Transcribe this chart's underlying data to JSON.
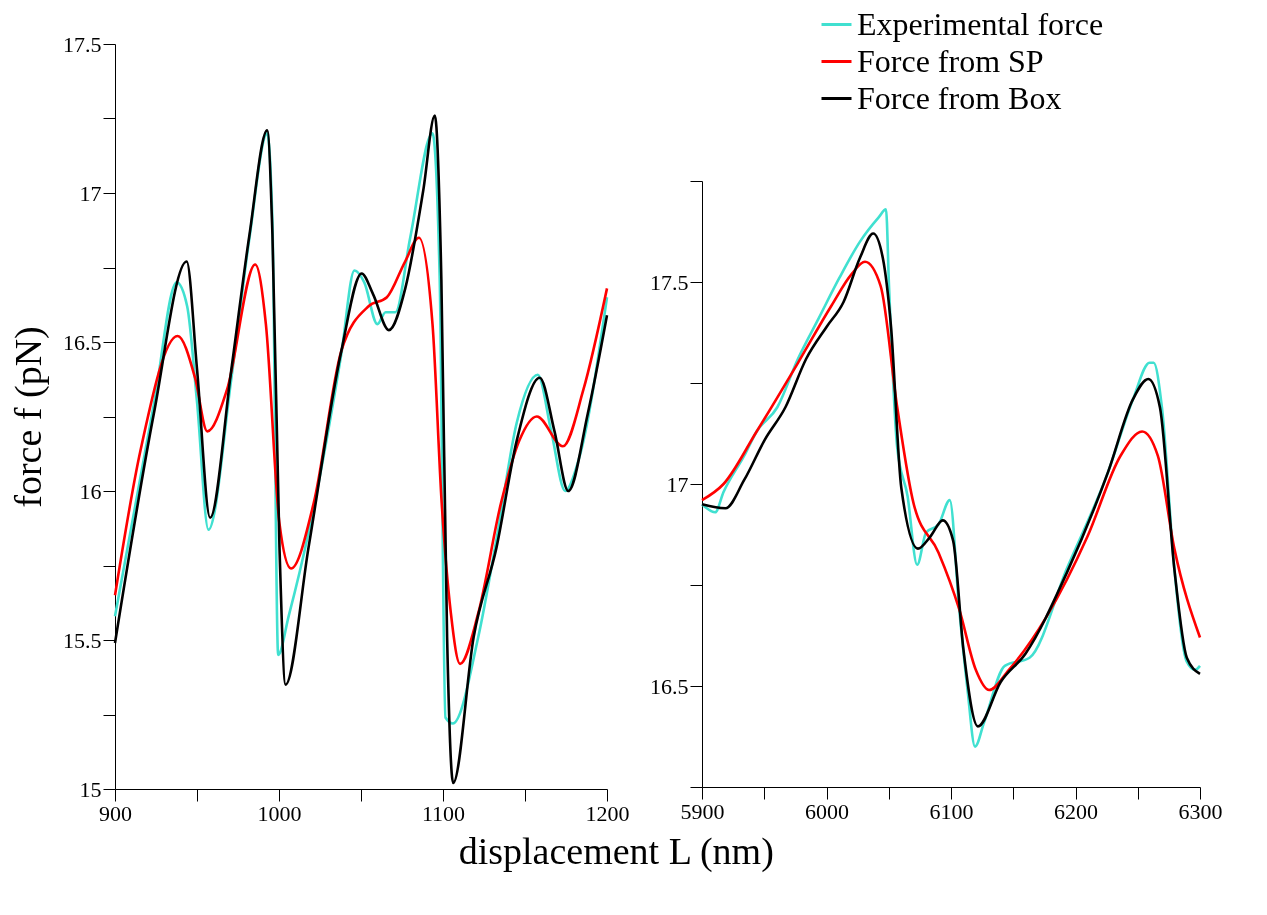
{
  "chart_data": [
    {
      "type": "line",
      "ylabel": "force f (pN)",
      "xlabel": "displacement L (nm)",
      "xlim": [
        900,
        1200
      ],
      "ylim": [
        15,
        17.5
      ],
      "legend": false,
      "grid": false,
      "line_style": "solid",
      "marker": "none",
      "xticks": [
        900,
        {
          "value": 950,
          "label": null
        },
        1000,
        {
          "value": 1050,
          "label": null
        },
        1100,
        {
          "value": 1150,
          "label": null
        },
        1200
      ],
      "yticks": [
        15,
        {
          "value": 15.25,
          "label": null
        },
        15.5,
        {
          "value": 15.75,
          "label": null
        },
        16,
        {
          "value": 16.25,
          "label": null
        },
        16.5,
        {
          "value": 16.75,
          "label": null
        },
        17,
        {
          "value": 17.25,
          "label": null
        },
        17.5
      ],
      "series": [
        {
          "color": "#40e0d0",
          "x": [
            900,
            924,
            937.6,
            944,
            950,
            957,
            971,
            982,
            992.8,
            996,
            999.5,
            1005.9,
            1018,
            1038,
            1046,
            1052,
            1060,
            1065,
            1071,
            1080,
            1093.6,
            1098,
            1101.5,
            1106,
            1121.5,
            1133,
            1145,
            1157.8,
            1166,
            1174.5,
            1183,
            1200
          ],
          "values": [
            15.58,
            16.3,
            16.7,
            16.62,
            16.3,
            15.87,
            16.38,
            16.85,
            17.2,
            16.9,
            15.45,
            15.58,
            15.86,
            16.46,
            16.74,
            16.7,
            16.56,
            16.6,
            16.6,
            16.85,
            17.2,
            16.71,
            15.24,
            15.22,
            15.51,
            15.85,
            16.23,
            16.39,
            16.2,
            16.0,
            16.11,
            16.65
          ]
        },
        {
          "color": "#ff0000",
          "x": [
            900,
            915.3,
            938.2,
            948.8,
            956.3,
            968.3,
            985.5,
            992,
            1000.3,
            1007.3,
            1021.2,
            1038,
            1054.6,
            1065.8,
            1076.9,
            1085.3,
            1093.6,
            1099.2,
            1104.8,
            1110.4,
            1121.5,
            1135.4,
            1146.6,
            1157.2,
            1173.1,
            1185.6,
            1200
          ],
          "values": [
            15.65,
            16.13,
            16.52,
            16.38,
            16.2,
            16.34,
            16.76,
            16.56,
            15.89,
            15.74,
            15.96,
            16.47,
            16.62,
            16.65,
            16.77,
            16.85,
            16.56,
            15.96,
            15.59,
            15.42,
            15.59,
            15.96,
            16.17,
            16.25,
            16.15,
            16.34,
            16.68
          ]
        },
        {
          "color": "#000000",
          "x": [
            900,
            923.7,
            943.7,
            950,
            958,
            971,
            982,
            992.8,
            996,
            1000.3,
            1004,
            1018,
            1038,
            1050.4,
            1057.4,
            1067,
            1077,
            1088,
            1095,
            1099,
            1102.5,
            1106.2,
            1118.7,
            1132.6,
            1145,
            1159,
            1168,
            1176.4,
            1188.3,
            1200
          ],
          "values": [
            15.49,
            16.26,
            16.77,
            16.41,
            15.91,
            16.41,
            16.86,
            17.21,
            16.86,
            15.81,
            15.35,
            15.81,
            16.47,
            16.73,
            16.66,
            16.54,
            16.68,
            17.01,
            17.26,
            16.71,
            15.51,
            15.02,
            15.51,
            15.81,
            16.17,
            16.38,
            16.2,
            16.0,
            16.26,
            16.59
          ]
        }
      ]
    },
    {
      "type": "line",
      "xlim": [
        5900,
        6300
      ],
      "ylim": [
        16.25,
        17.75
      ],
      "legend": "top right",
      "grid": false,
      "line_style": "solid",
      "marker": "none",
      "xticks": [
        5900,
        {
          "value": 5950,
          "label": null
        },
        6000,
        {
          "value": 6050,
          "label": null
        },
        6100,
        {
          "value": 6150,
          "label": null
        },
        6200,
        {
          "value": 6250,
          "label": null
        },
        6300
      ],
      "yticks": [
        {
          "value": 16.25,
          "label": null
        },
        16.5,
        {
          "value": 16.75,
          "label": null
        },
        17,
        {
          "value": 17.25,
          "label": null
        },
        17.5,
        {
          "value": 17.75,
          "label": null
        }
      ],
      "series": [
        {
          "name": "Experimental force",
          "color": "#40e0d0",
          "x": [
            5900,
            5910.6,
            5917.3,
            5933.9,
            5943.9,
            5960.5,
            5977.1,
            5993.7,
            6010.3,
            6026.9,
            6041.9,
            6047.8,
            6050.2,
            6056.8,
            6065.1,
            6072.8,
            6080,
            6090,
            6099,
            6106.6,
            6113.3,
            6119.3,
            6126.6,
            6143.2,
            6163.1,
            6193,
            6226.2,
            6246.2,
            6259.5,
            6262.8,
            6269.4,
            6279.4,
            6289.4,
            6296,
            6300
          ],
          "values": [
            16.95,
            16.93,
            16.98,
            17.07,
            17.13,
            17.19,
            17.31,
            17.41,
            17.51,
            17.6,
            17.66,
            17.68,
            17.49,
            17.09,
            16.97,
            16.8,
            16.88,
            16.9,
            16.96,
            16.69,
            16.49,
            16.35,
            16.41,
            16.55,
            16.57,
            16.79,
            17.03,
            17.21,
            17.3,
            17.3,
            17.19,
            16.79,
            16.56,
            16.54,
            16.55
          ]
        },
        {
          "name": "Force from SP",
          "color": "#ff0000",
          "x": [
            5900,
            5917.3,
            5943.9,
            5977.1,
            6003.7,
            6020.3,
            6030.9,
            6043.5,
            6056.8,
            6070.1,
            6090,
            6106.6,
            6119.9,
            6130.6,
            6146.5,
            6176.4,
            6209.6,
            6236.2,
            6253.5,
            6266.1,
            6279.4,
            6300
          ],
          "values": [
            16.96,
            17.0,
            17.13,
            17.3,
            17.44,
            17.52,
            17.55,
            17.49,
            17.19,
            16.95,
            16.83,
            16.69,
            16.54,
            16.49,
            16.54,
            16.67,
            16.87,
            17.07,
            17.13,
            17.07,
            16.84,
            16.62
          ]
        },
        {
          "name": "Force from Box",
          "color": "#000000",
          "x": [
            5900,
            5918.9,
            5933.9,
            5950.5,
            5967,
            5983.7,
            6000.3,
            6013.6,
            6026.9,
            6037.5,
            6045.2,
            6051.8,
            6060.1,
            6073.4,
            6083.4,
            6093.4,
            6101.7,
            6110,
            6121.6,
            6139.9,
            6159.8,
            6193,
            6226.2,
            6246.2,
            6258.5,
            6267.8,
            6279.4,
            6289.4,
            6300
          ],
          "values": [
            16.95,
            16.94,
            17.01,
            17.11,
            17.19,
            17.31,
            17.39,
            17.45,
            17.56,
            17.62,
            17.56,
            17.39,
            16.99,
            16.84,
            16.87,
            16.91,
            16.86,
            16.59,
            16.4,
            16.51,
            16.58,
            16.78,
            17.03,
            17.21,
            17.26,
            17.19,
            16.79,
            16.57,
            16.53
          ]
        }
      ]
    }
  ]
}
